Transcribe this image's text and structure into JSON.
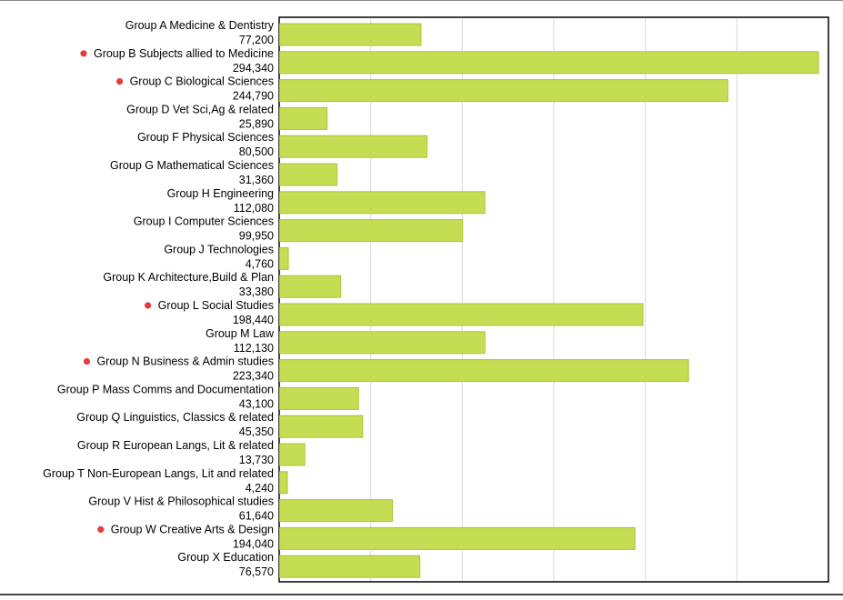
{
  "chart_data": {
    "type": "bar",
    "orientation": "horizontal",
    "categories": [
      "Group A Medicine & Dentistry",
      "Group B Subjects allied to Medicine",
      "Group C Biological Sciences",
      "Group D Vet Sci,Ag & related",
      "Group F Physical Sciences",
      "Group G Mathematical Sciences",
      "Group H Engineering",
      "Group I Computer Sciences",
      "Group J Technologies",
      "Group K Architecture,Build & Plan",
      "Group L Social Studies",
      "Group M Law",
      "Group N Business & Admin studies",
      "Group P Mass Comms and Documentation",
      "Group Q Linguistics, Classics & related",
      "Group R European Langs, Lit & related",
      "Group T Non-European Langs, Lit and related",
      "Group V Hist & Philosophical studies",
      "Group W Creative Arts & Design",
      "Group X Education"
    ],
    "values": [
      77200,
      294340,
      244790,
      25890,
      80500,
      31360,
      112080,
      99950,
      4760,
      33380,
      198440,
      112130,
      223340,
      43100,
      45350,
      13730,
      4240,
      61640,
      194040,
      76570
    ],
    "value_labels": [
      "77,200",
      "294,340",
      "244,790",
      "25,890",
      "80,500",
      "31,360",
      "112,080",
      "99,950",
      "4,760",
      "33,380",
      "198,440",
      "112,130",
      "223,340",
      "43,100",
      "45,350",
      "13,730",
      "4,240",
      "61,640",
      "194,040",
      "76,570"
    ],
    "highlighted": [
      false,
      true,
      true,
      false,
      false,
      false,
      false,
      false,
      false,
      false,
      true,
      false,
      true,
      false,
      false,
      false,
      false,
      false,
      true,
      false
    ],
    "xlim": [
      0,
      300000
    ],
    "grid": true,
    "title": "",
    "xlabel": "",
    "ylabel": "",
    "colors": {
      "bar_fill": "#c5dd52",
      "bar_stroke": "#a9c43a",
      "marker": "#e63b3b",
      "grid": "#d9d9d9",
      "axis": "#000000",
      "text": "#000000"
    }
  }
}
